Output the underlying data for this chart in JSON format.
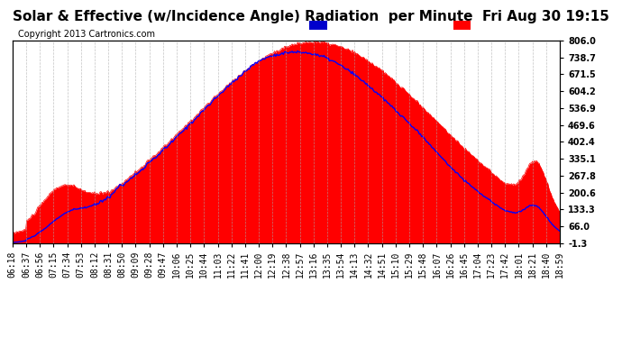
{
  "title": "Solar & Effective (w/Incidence Angle) Radiation  per Minute  Fri Aug 30 19:15",
  "copyright": "Copyright 2013 Cartronics.com",
  "ylabel_right_ticks": [
    806.0,
    738.7,
    671.5,
    604.2,
    536.9,
    469.6,
    402.4,
    335.1,
    267.8,
    200.6,
    133.3,
    66.0,
    -1.3
  ],
  "ymin": -1.3,
  "ymax": 806.0,
  "background_color": "#ffffff",
  "plot_bg_color": "#ffffff",
  "grid_color": "#aaaaaa",
  "red_color": "#ff0000",
  "blue_color": "#0000ff",
  "legend_blue_bg": "#0000cc",
  "legend_red_bg": "#cc0000",
  "x_tick_labels": [
    "06:18",
    "06:37",
    "06:56",
    "07:15",
    "07:34",
    "07:53",
    "08:12",
    "08:31",
    "08:50",
    "09:09",
    "09:28",
    "09:47",
    "10:06",
    "10:25",
    "10:44",
    "11:03",
    "11:22",
    "11:41",
    "12:00",
    "12:19",
    "12:38",
    "12:57",
    "13:16",
    "13:35",
    "13:54",
    "14:13",
    "14:32",
    "14:51",
    "15:10",
    "15:29",
    "15:48",
    "16:07",
    "16:26",
    "16:45",
    "17:04",
    "17:23",
    "17:42",
    "18:01",
    "18:21",
    "18:40",
    "18:59"
  ],
  "title_fontsize": 11,
  "axis_fontsize": 7,
  "copyright_fontsize": 7
}
